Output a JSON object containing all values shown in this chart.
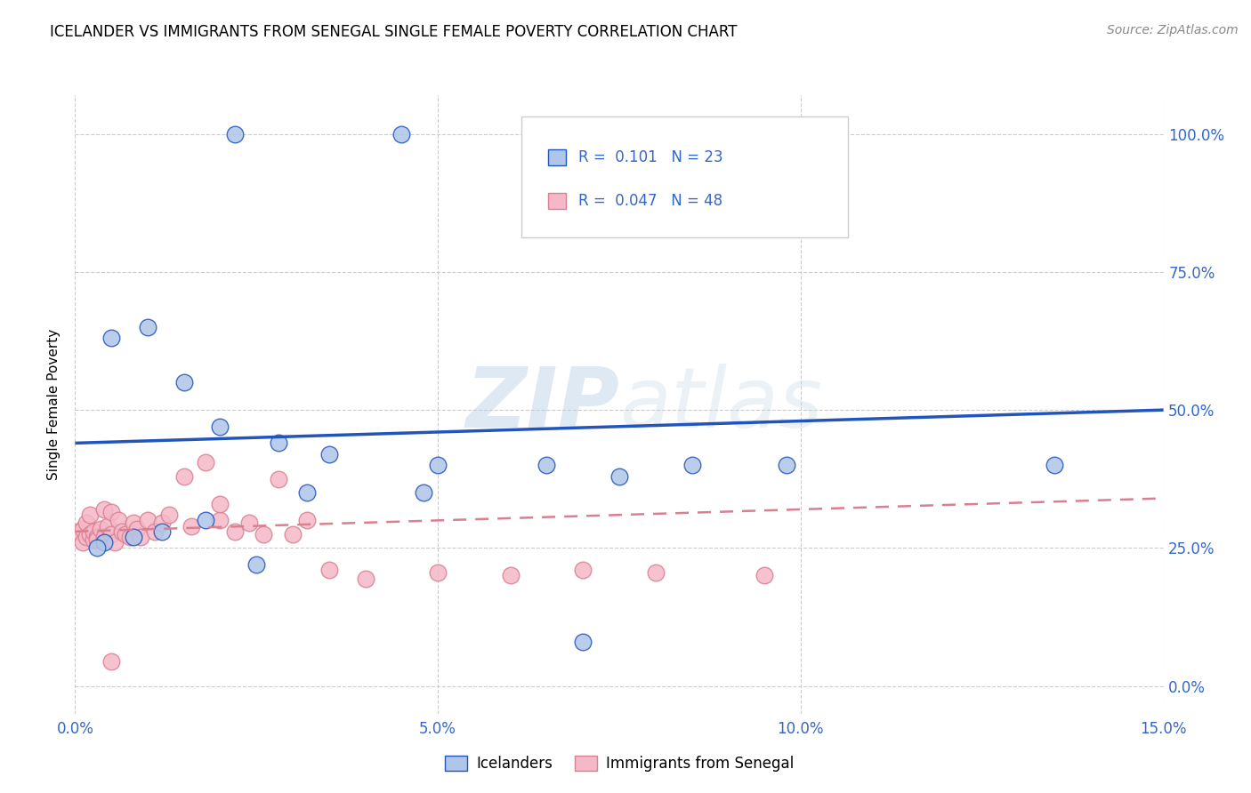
{
  "title": "ICELANDER VS IMMIGRANTS FROM SENEGAL SINGLE FEMALE POVERTY CORRELATION CHART",
  "source": "Source: ZipAtlas.com",
  "ylabel": "Single Female Poverty",
  "xlabel_ticks": [
    "0.0%",
    "5.0%",
    "10.0%",
    "15.0%"
  ],
  "xlabel_values": [
    0.0,
    5.0,
    10.0,
    15.0
  ],
  "ylabel_ticks": [
    "0.0%",
    "25.0%",
    "50.0%",
    "75.0%",
    "100.0%"
  ],
  "ylabel_values": [
    0.0,
    25.0,
    50.0,
    75.0,
    100.0
  ],
  "xlim": [
    0.0,
    15.0
  ],
  "ylim": [
    -5.0,
    107.0
  ],
  "icelanders_R": "0.101",
  "icelanders_N": "23",
  "senegal_R": "0.047",
  "senegal_N": "48",
  "icelanders_color": "#aec6e8",
  "senegal_color": "#f5b8c8",
  "trendline_icelanders_color": "#2255bb",
  "trendline_senegal_color": "#d88090",
  "watermark_zip": "ZIP",
  "watermark_atlas": "atlas",
  "icelanders_x": [
    2.2,
    4.5,
    0.5,
    1.0,
    1.5,
    2.0,
    2.8,
    3.5,
    5.0,
    6.5,
    8.5,
    13.5,
    9.8,
    7.5,
    4.8,
    3.2,
    1.8,
    1.2,
    0.8,
    0.4,
    0.3,
    2.5,
    7.0
  ],
  "icelanders_y": [
    100.0,
    100.0,
    63.0,
    65.0,
    55.0,
    47.0,
    44.0,
    42.0,
    40.0,
    40.0,
    40.0,
    40.0,
    40.0,
    38.0,
    35.0,
    35.0,
    30.0,
    28.0,
    27.0,
    26.0,
    25.0,
    22.0,
    8.0
  ],
  "senegal_x": [
    0.05,
    0.1,
    0.1,
    0.15,
    0.15,
    0.2,
    0.2,
    0.25,
    0.25,
    0.3,
    0.3,
    0.35,
    0.4,
    0.4,
    0.45,
    0.5,
    0.5,
    0.55,
    0.6,
    0.65,
    0.7,
    0.75,
    0.8,
    0.85,
    0.9,
    1.0,
    1.1,
    1.2,
    1.3,
    1.5,
    1.6,
    1.8,
    2.0,
    2.2,
    2.4,
    2.6,
    2.8,
    3.0,
    3.2,
    4.0,
    5.0,
    6.0,
    7.0,
    8.0,
    9.5,
    3.5,
    2.0,
    0.5
  ],
  "senegal_y": [
    28.0,
    28.5,
    26.0,
    27.0,
    29.5,
    27.5,
    31.0,
    26.5,
    28.0,
    27.0,
    26.5,
    28.5,
    32.0,
    27.0,
    29.0,
    27.5,
    31.5,
    26.0,
    30.0,
    28.0,
    27.5,
    27.0,
    29.5,
    28.5,
    27.0,
    30.0,
    28.0,
    29.5,
    31.0,
    38.0,
    29.0,
    40.5,
    30.0,
    28.0,
    29.5,
    27.5,
    37.5,
    27.5,
    30.0,
    19.5,
    20.5,
    20.0,
    21.0,
    20.5,
    20.0,
    21.0,
    33.0,
    4.5
  ]
}
